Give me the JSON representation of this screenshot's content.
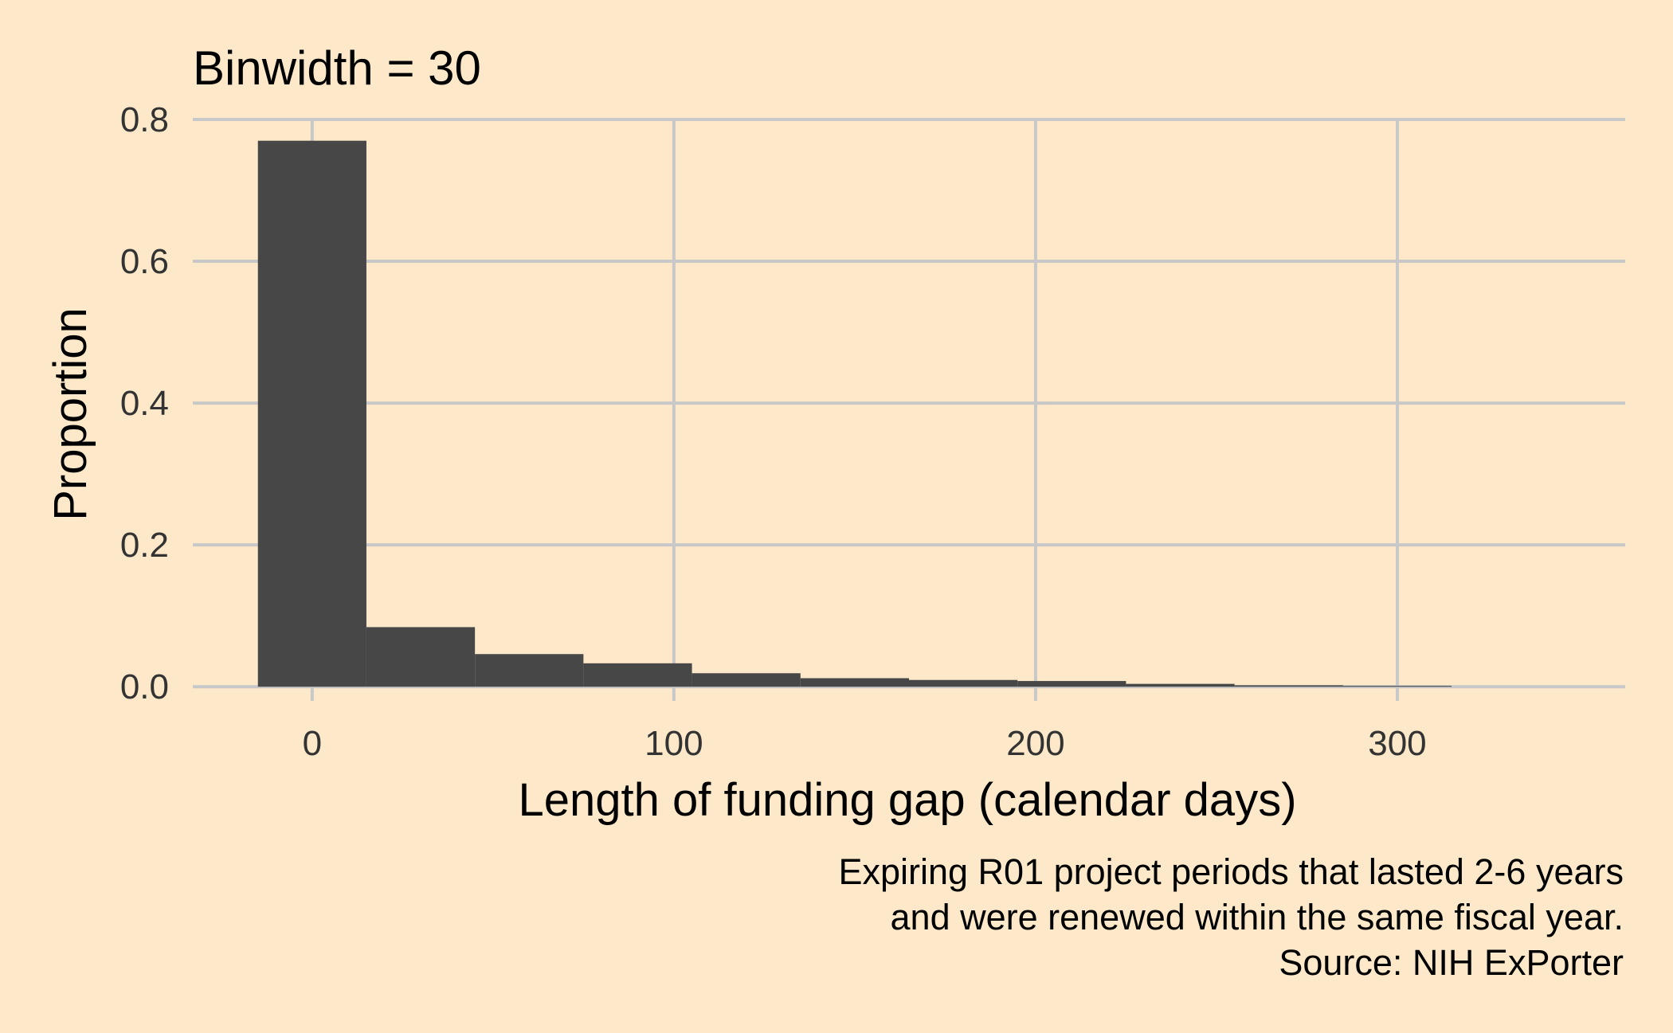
{
  "chart_data": {
    "type": "bar",
    "title": "Binwidth = 30",
    "xlabel": "Length of funding gap (calendar days)",
    "ylabel": "Proportion",
    "caption": [
      "Expiring R01 project periods that lasted 2-6 years",
      "and were renewed within the same fiscal year.",
      "Source: NIH ExPorter"
    ],
    "bin_width": 30,
    "bin_centers": [
      0,
      30,
      60,
      90,
      120,
      150,
      180,
      210,
      240,
      270,
      300
    ],
    "values": [
      0.77,
      0.084,
      0.046,
      0.033,
      0.019,
      0.012,
      0.0095,
      0.008,
      0.004,
      0.002,
      0.0012
    ],
    "xlim": [
      -33,
      363
    ],
    "ylim": [
      -0.02,
      0.8
    ],
    "x_ticks": [
      0,
      100,
      200,
      300
    ],
    "x_tick_labels": [
      "0",
      "100",
      "200",
      "300"
    ],
    "y_ticks": [
      0,
      0.2,
      0.4,
      0.6,
      0.8
    ],
    "y_tick_labels": [
      "0.0",
      "0.2",
      "0.4",
      "0.6",
      "0.8"
    ],
    "grid": true,
    "bar_color": "#474747",
    "background_color": "#fde9c9",
    "grid_color": "#c8c8c8"
  }
}
